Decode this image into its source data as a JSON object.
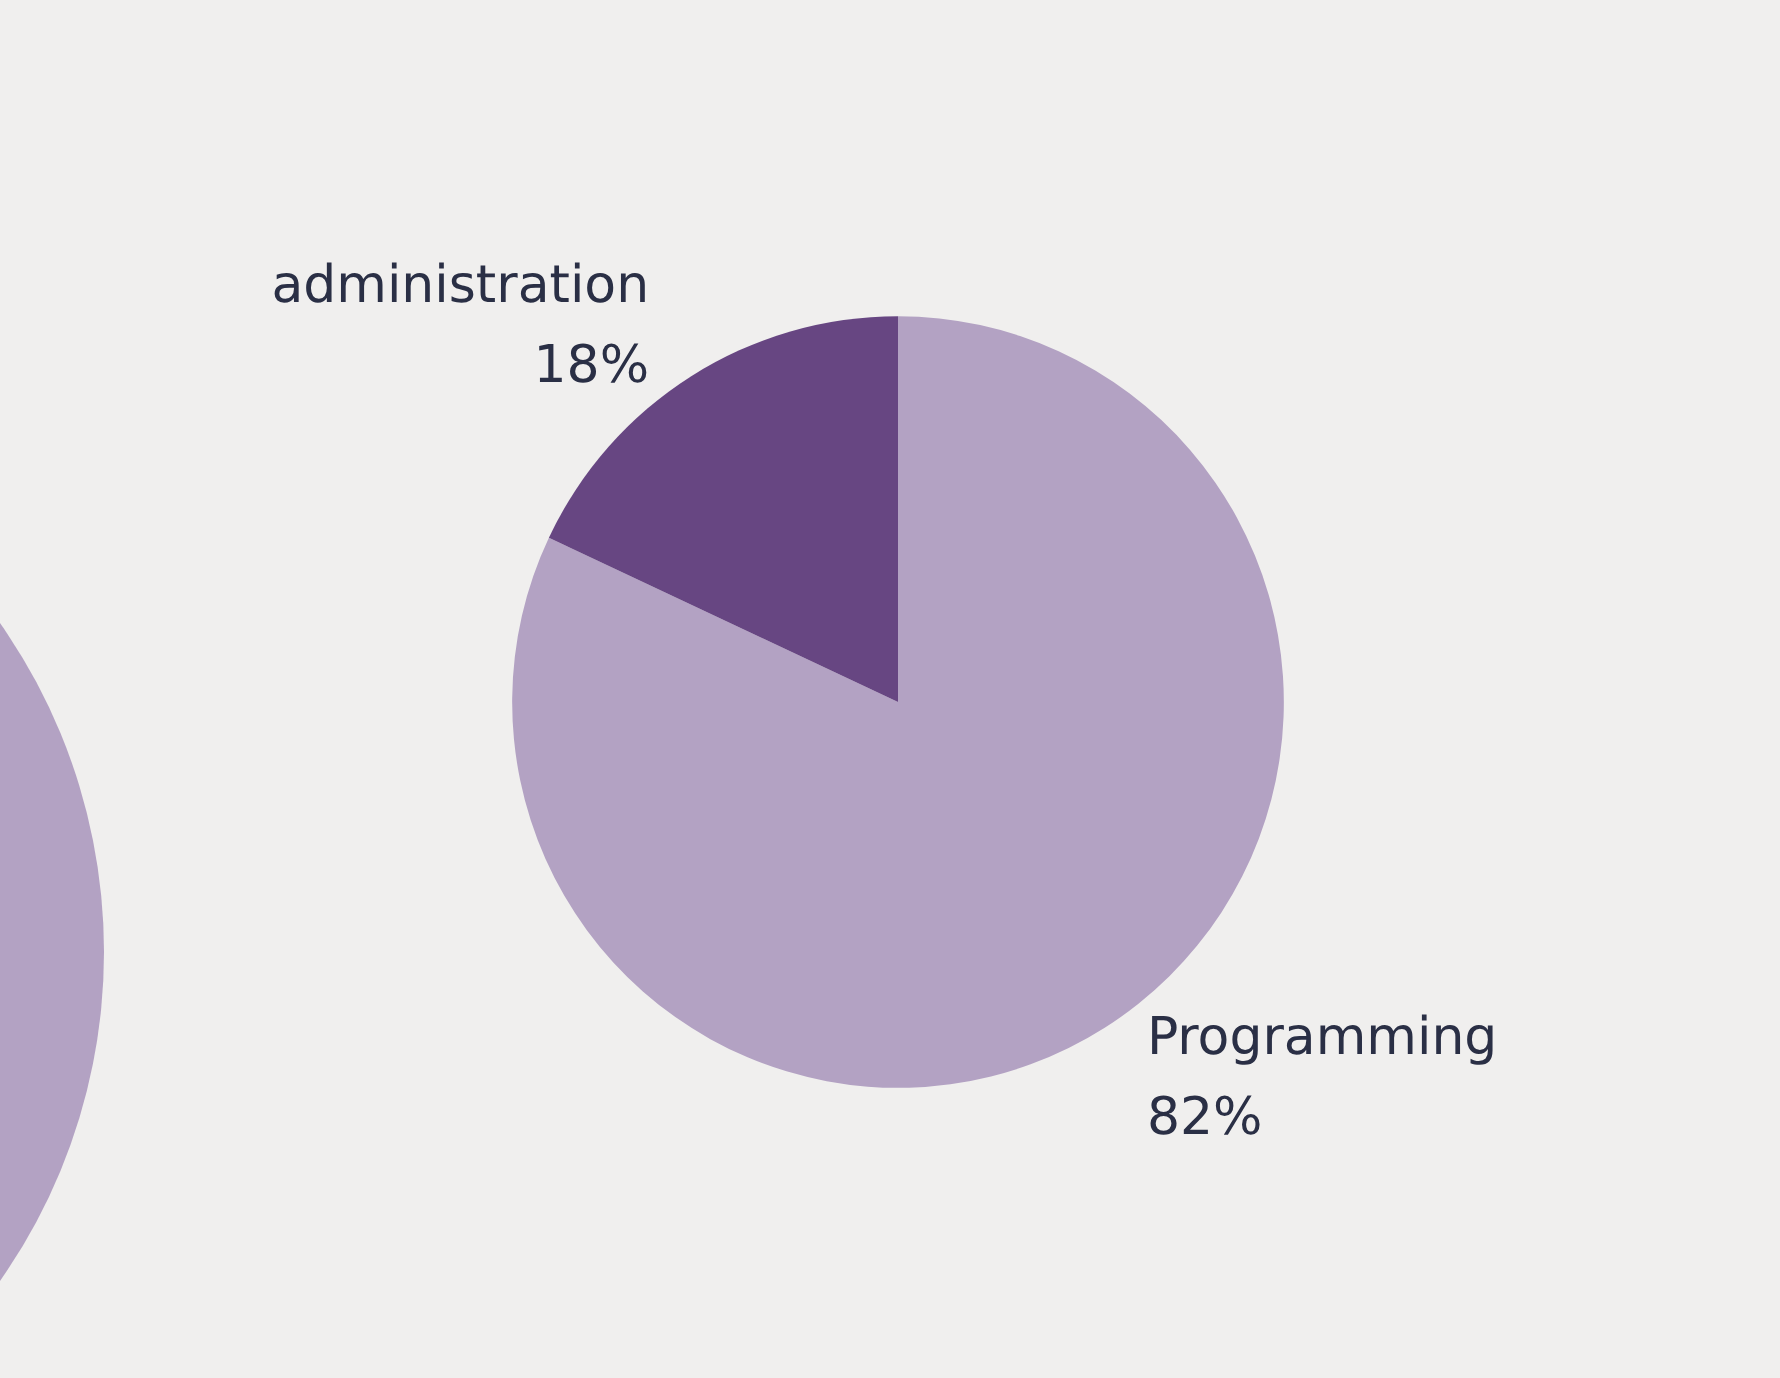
{
  "chart_data": {
    "type": "pie",
    "categories": [
      "Programming",
      "administration"
    ],
    "values": [
      82,
      18
    ],
    "colors": [
      "#b3a2c3",
      "#674682"
    ],
    "value_labels": [
      "82%",
      "18%"
    ],
    "legend": false
  }
}
